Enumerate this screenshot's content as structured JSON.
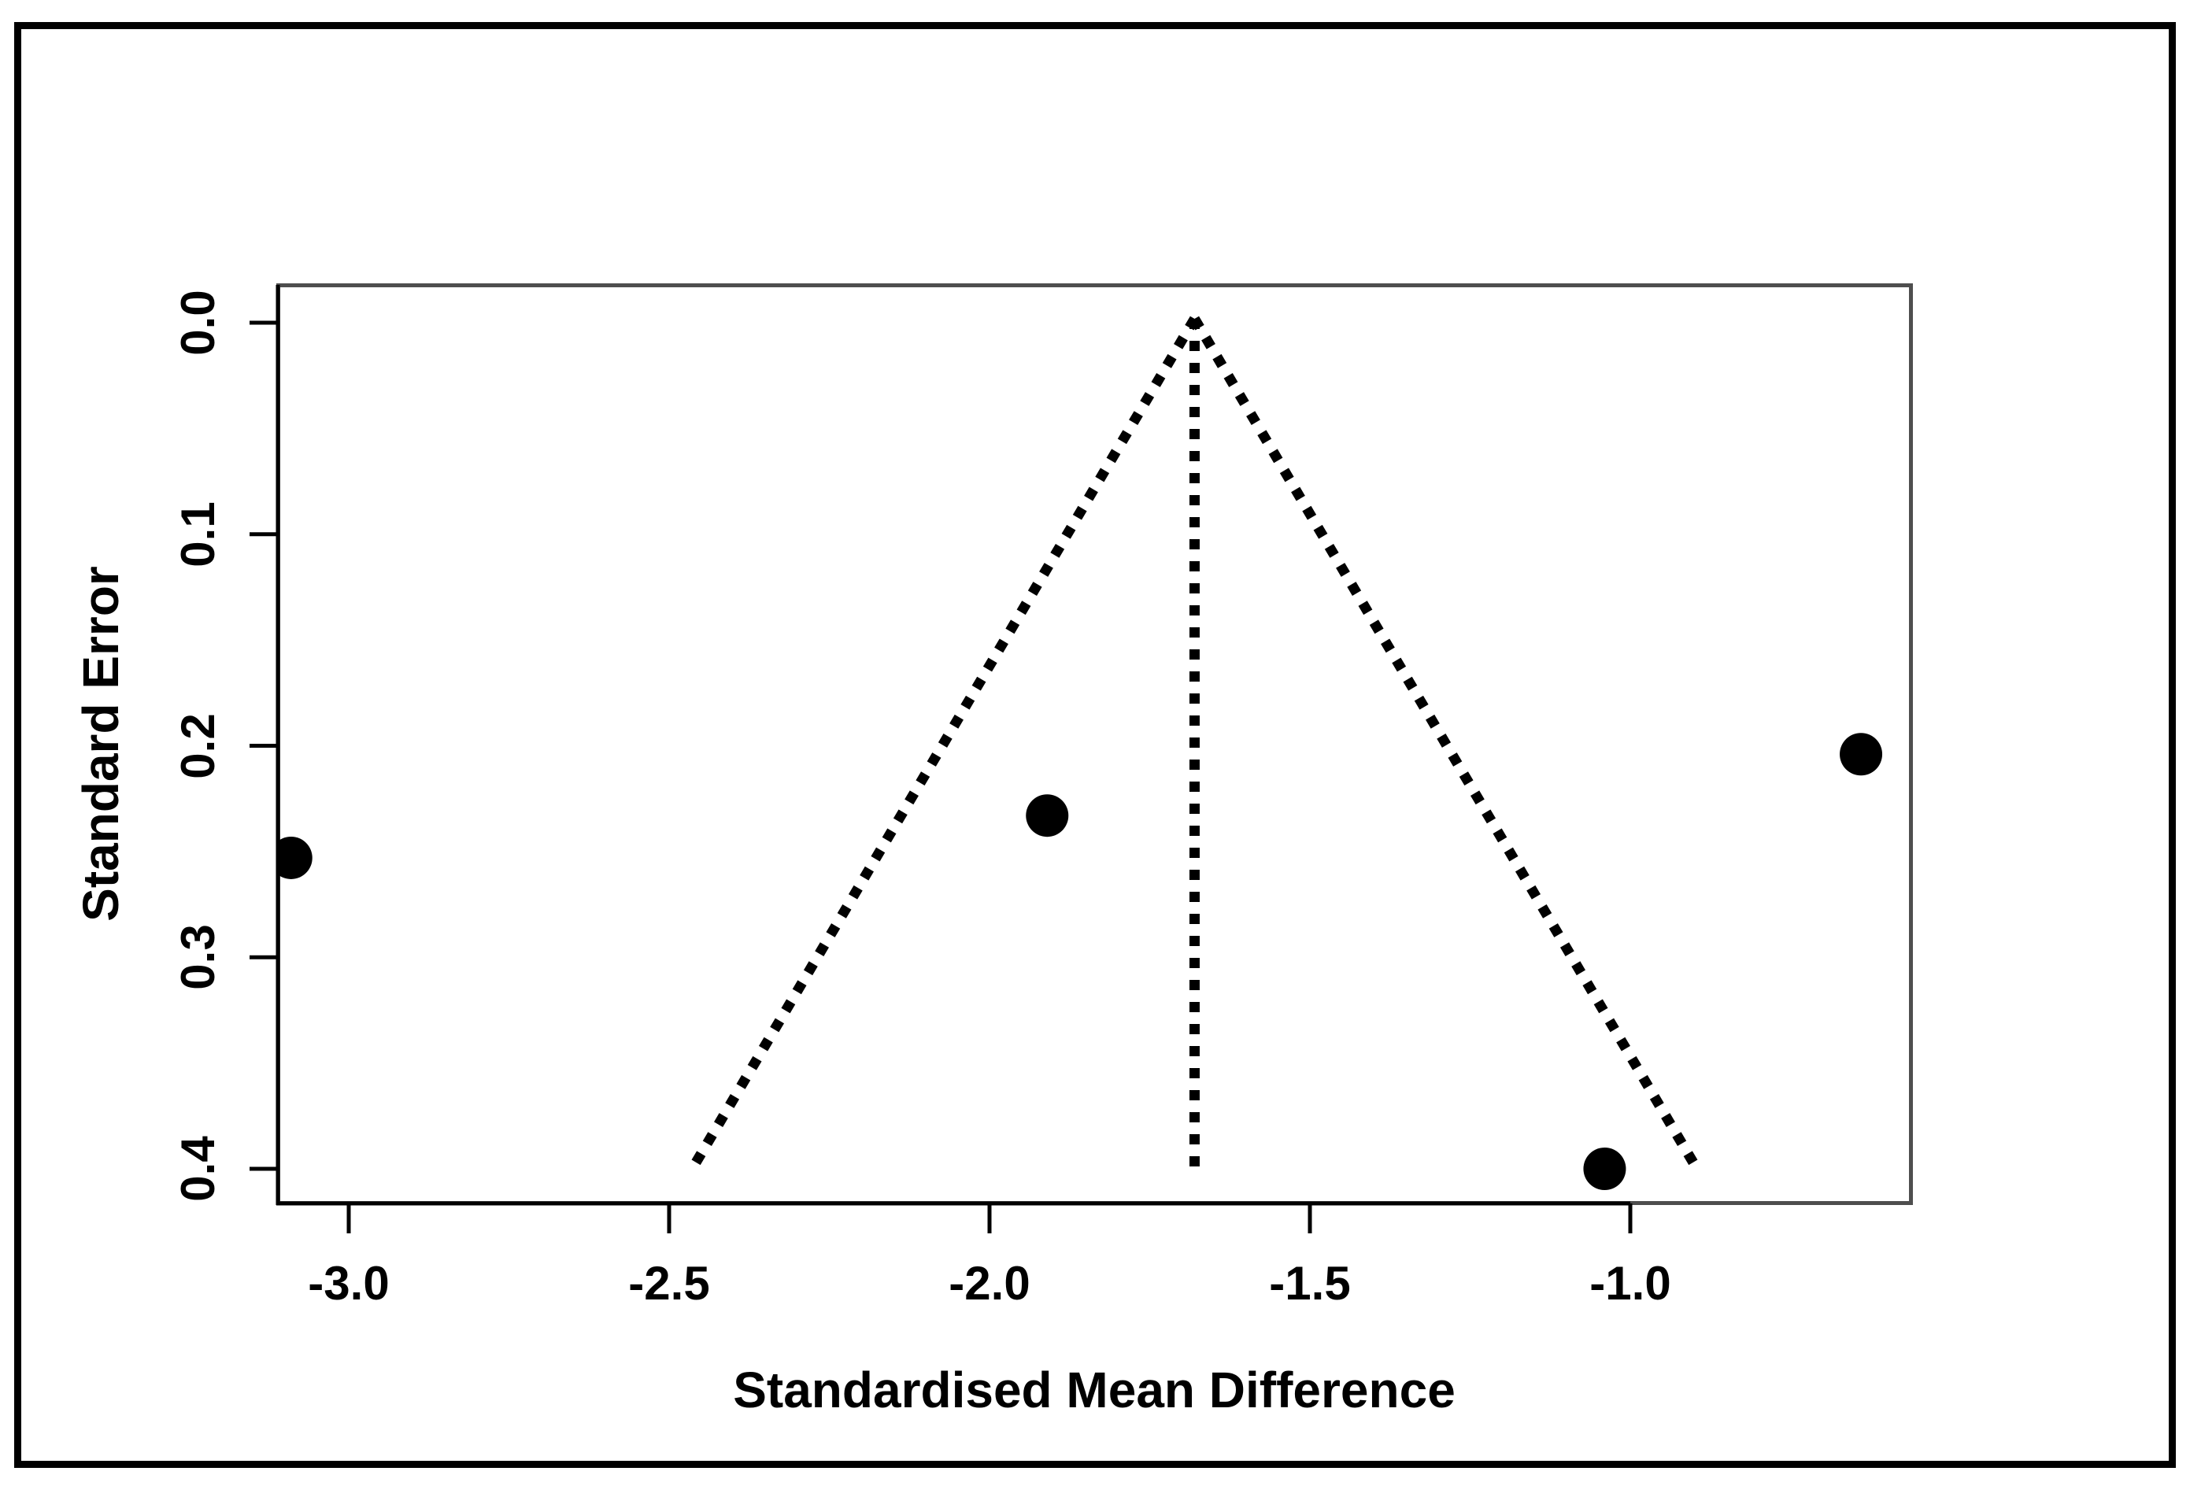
{
  "figure": {
    "background": "#ffffff",
    "frame_color": "#000000",
    "box_color": "#4e4e4e",
    "ink_color": "#000000"
  },
  "chart_data": {
    "type": "scatter",
    "subtype": "meta-analysis-funnel-plot",
    "title": "",
    "xlabel": "Standardised Mean Difference",
    "ylabel": "Standard Error",
    "x_ticks": [
      -3.0,
      -2.5,
      -2.0,
      -1.5,
      -1.0
    ],
    "x_tick_labels": [
      "-3.0",
      "-2.5",
      "-2.0",
      "-1.5",
      "-1.0"
    ],
    "y_ticks": [
      0.0,
      0.1,
      0.2,
      0.3,
      0.4
    ],
    "y_tick_labels": [
      "0.0",
      "0.1",
      "0.2",
      "0.3",
      "0.4"
    ],
    "xlim": [
      -3.11,
      -0.56
    ],
    "ylim": [
      0.0,
      0.4
    ],
    "y_axis_inverted": true,
    "grid": false,
    "legend": null,
    "points": [
      {
        "smd": -3.09,
        "se": 0.253
      },
      {
        "smd": -1.91,
        "se": 0.233
      },
      {
        "smd": -1.04,
        "se": 0.4
      },
      {
        "smd": -0.64,
        "se": 0.204
      }
    ],
    "funnel": {
      "center_estimate": -1.68,
      "ci_multiplier": 1.96,
      "se_top": 0.0,
      "se_bottom": 0.4,
      "line_style": "dotted",
      "color": "#000000"
    }
  }
}
